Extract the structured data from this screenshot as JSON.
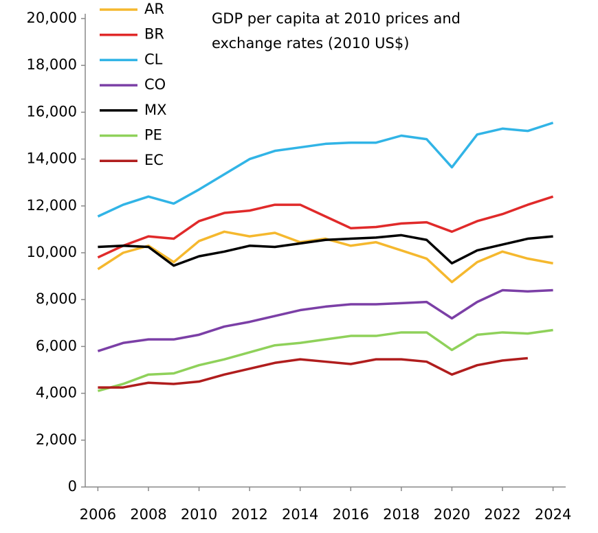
{
  "chart_data": {
    "type": "line",
    "title": [
      "GDP per capita at 2010 prices and",
      "exchange rates (2010 US$)"
    ],
    "x": [
      2006,
      2007,
      2008,
      2009,
      2010,
      2011,
      2012,
      2013,
      2014,
      2015,
      2016,
      2017,
      2018,
      2019,
      2020,
      2021,
      2022,
      2023,
      2024
    ],
    "xlim": [
      2005.5,
      2024.5
    ],
    "xticks": [
      2006,
      2008,
      2010,
      2012,
      2014,
      2016,
      2018,
      2020,
      2022,
      2024
    ],
    "ylim": [
      0,
      20000
    ],
    "yticks": [
      0,
      {
        "value": 2000,
        "label": "2,000"
      },
      {
        "value": 4000,
        "label": "4,000"
      },
      {
        "value": 6000,
        "label": "6,000"
      },
      {
        "value": 8000,
        "label": "8,000"
      },
      {
        "value": 10000,
        "label": "10,000"
      },
      {
        "value": 12000,
        "label": "12,000"
      },
      {
        "value": 14000,
        "label": "14,000"
      },
      {
        "value": 16000,
        "label": "16,000"
      },
      {
        "value": 18000,
        "label": "18,000"
      },
      {
        "value": 20000,
        "label": "20,000"
      }
    ],
    "grid": false,
    "legend": "top-left",
    "series": [
      {
        "name": "AR",
        "color": "#f5b82e",
        "values": [
          9300,
          10000,
          10300,
          9600,
          10500,
          10900,
          10700,
          10850,
          10450,
          10600,
          10300,
          10450,
          10100,
          9750,
          8750,
          9600,
          10050,
          9750,
          9550
        ]
      },
      {
        "name": "BR",
        "color": "#e02a2a",
        "values": [
          9800,
          10300,
          10700,
          10600,
          11350,
          11700,
          11800,
          12050,
          12050,
          11550,
          11050,
          11100,
          11250,
          11300,
          10900,
          11350,
          11650,
          12050,
          12400
        ]
      },
      {
        "name": "CL",
        "color": "#31b4e6",
        "values": [
          11550,
          12050,
          12400,
          12100,
          12700,
          13350,
          14000,
          14350,
          14500,
          14650,
          14700,
          14700,
          15000,
          14850,
          13650,
          15050,
          15300,
          15200,
          15550
        ]
      },
      {
        "name": "CO",
        "color": "#7b3fa6",
        "values": [
          5800,
          6150,
          6300,
          6300,
          6500,
          6850,
          7050,
          7300,
          7550,
          7700,
          7800,
          7800,
          7850,
          7900,
          7200,
          7900,
          8400,
          8350,
          8400
        ]
      },
      {
        "name": "MX",
        "color": "#000000",
        "values": [
          10250,
          10300,
          10250,
          9450,
          9850,
          10050,
          10300,
          10250,
          10400,
          10550,
          10600,
          10650,
          10750,
          10550,
          9550,
          10100,
          10350,
          10600,
          10700
        ]
      },
      {
        "name": "PE",
        "color": "#8fd15a",
        "values": [
          4100,
          4400,
          4800,
          4850,
          5200,
          5450,
          5750,
          6050,
          6150,
          6300,
          6450,
          6450,
          6600,
          6600,
          5850,
          6500,
          6600,
          6550,
          6700
        ]
      },
      {
        "name": "EC",
        "color": "#b01d1d",
        "values": [
          4250,
          4250,
          4450,
          4400,
          4500,
          4800,
          5050,
          5300,
          5450,
          5350,
          5250,
          5450,
          5450,
          5350,
          4800,
          5200,
          5400,
          5500,
          null
        ]
      }
    ]
  }
}
